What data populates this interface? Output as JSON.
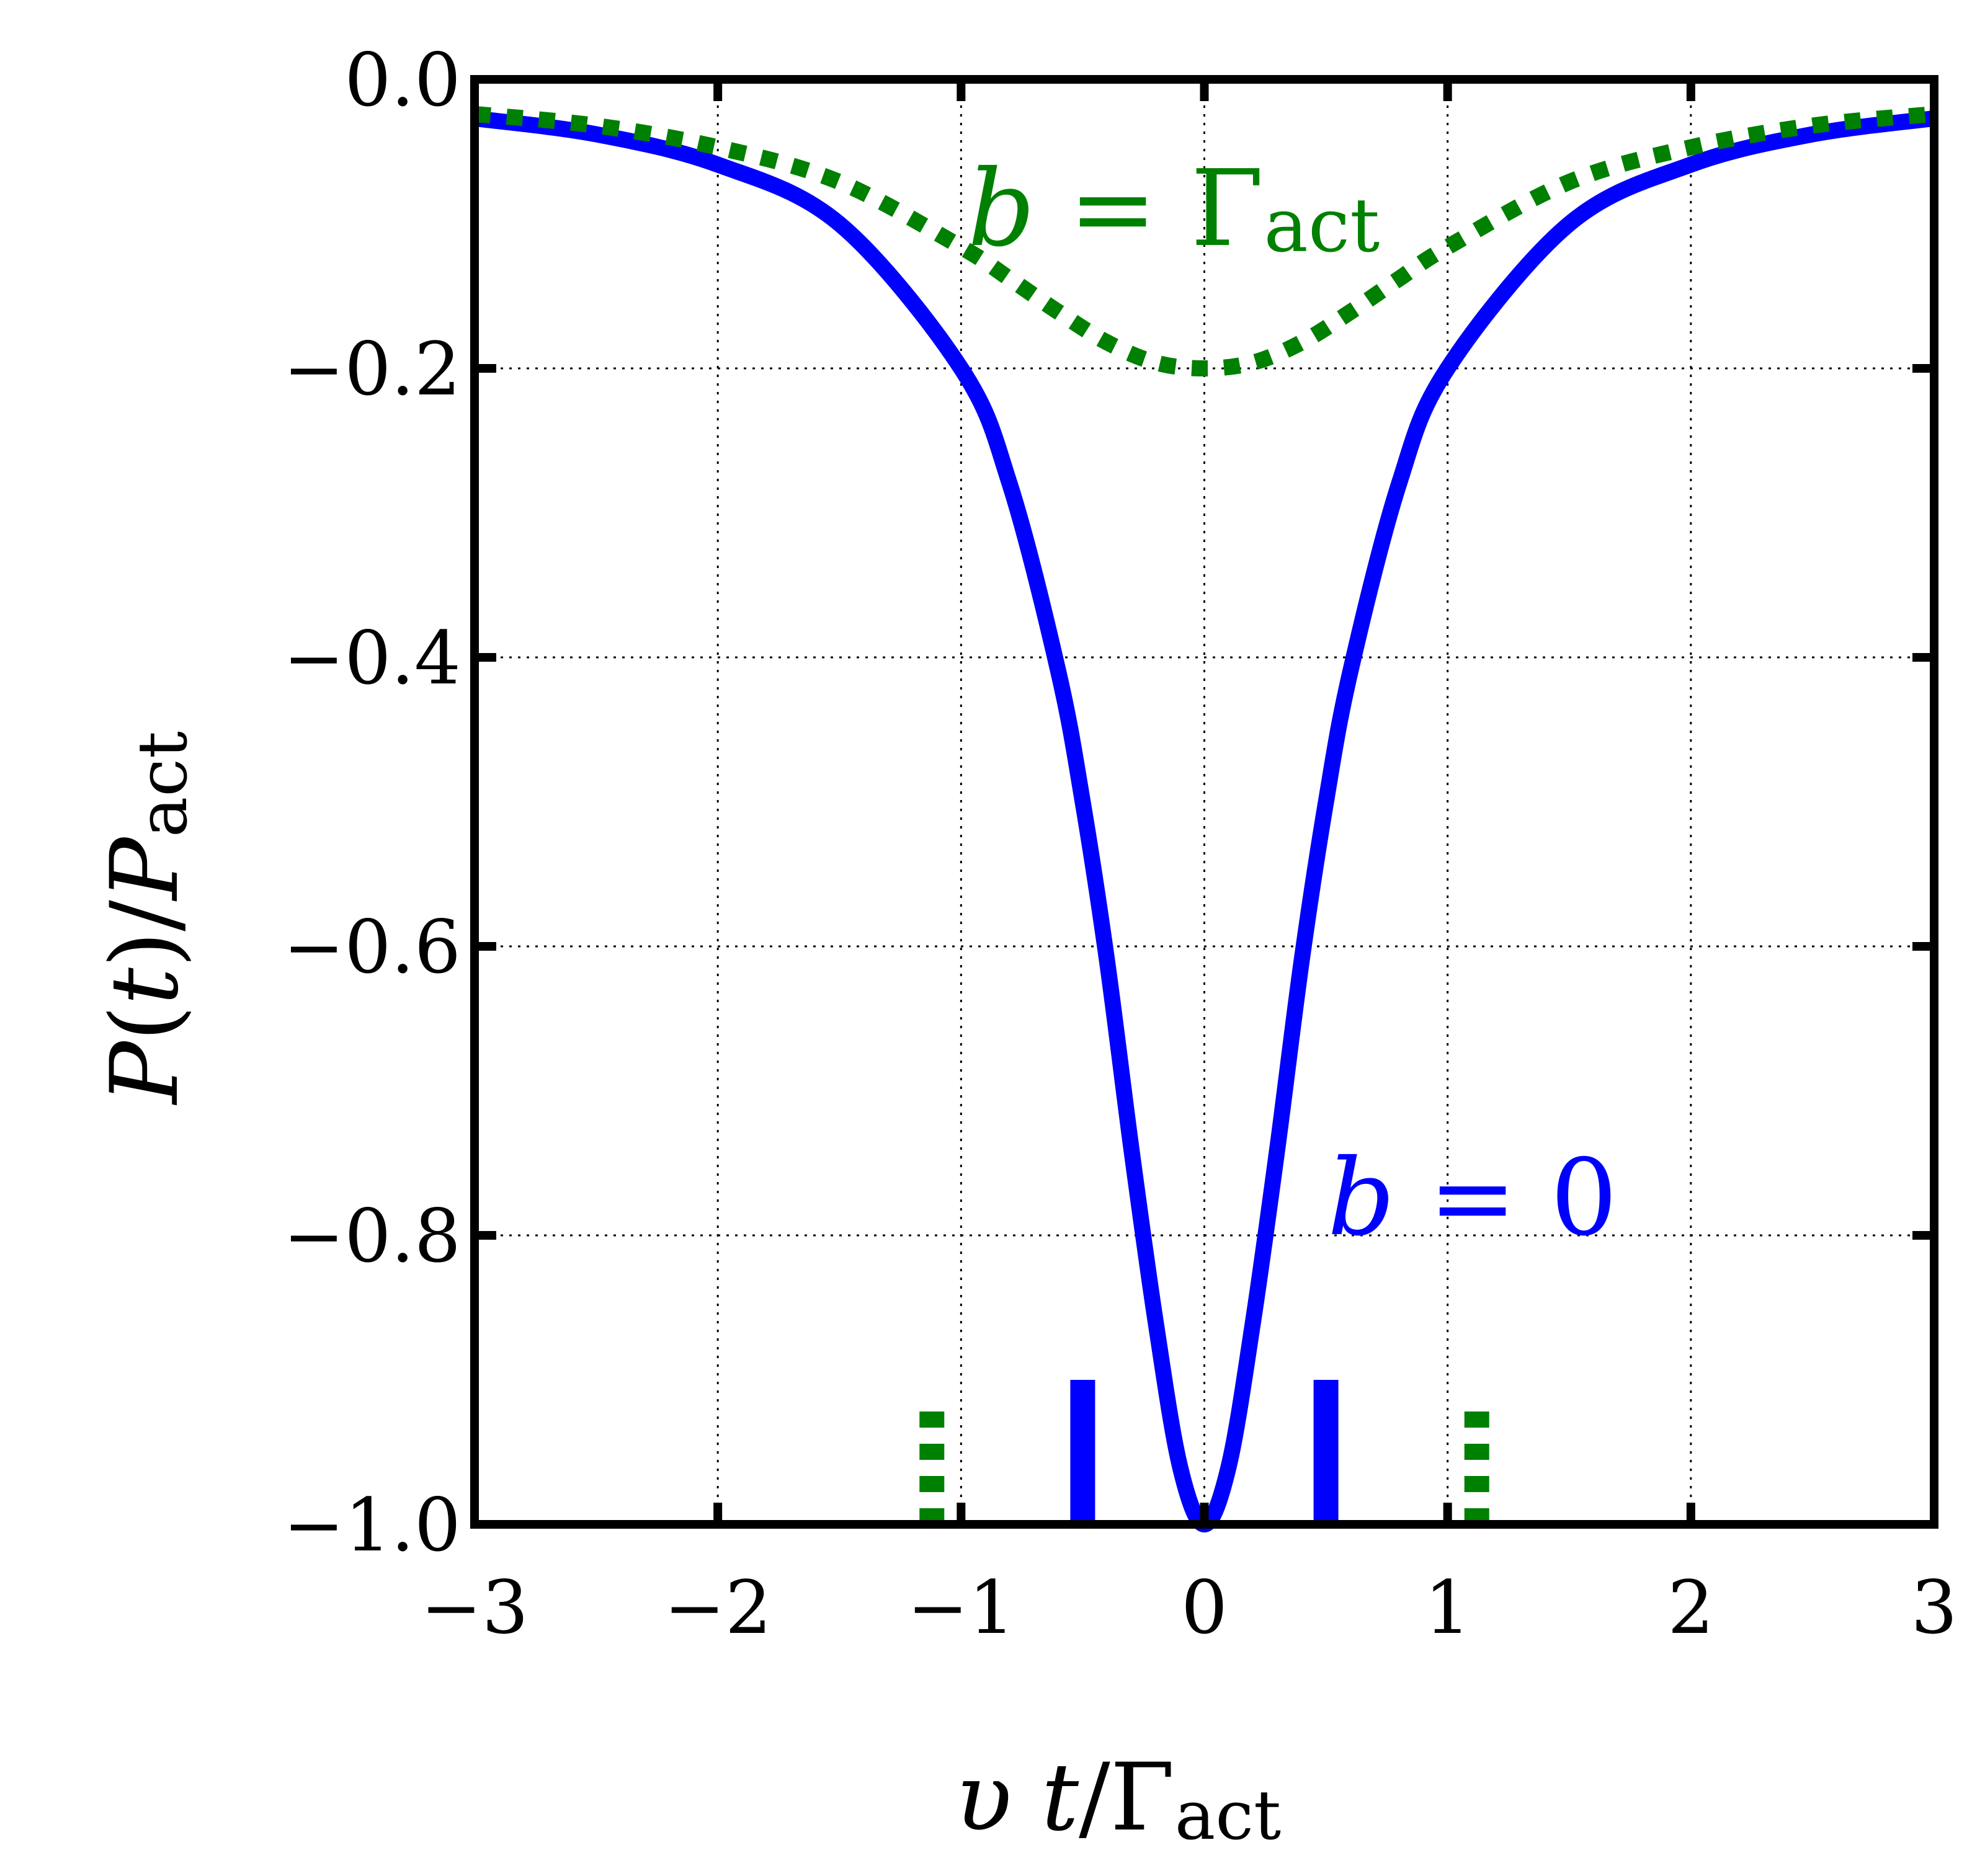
{
  "chart_data": {
    "type": "line",
    "xlabel": "υ t/Γact",
    "ylabel": "P(t)/Pact",
    "xlim": [
      -3,
      3
    ],
    "ylim": [
      -1.0,
      0.0
    ],
    "grid": true,
    "xticks": [
      -3,
      -2,
      -1,
      0,
      1,
      2,
      3
    ],
    "xtick_labels": [
      "−3",
      "−2",
      "−1",
      "0",
      "1",
      "2",
      "3"
    ],
    "yticks": [
      0.0,
      -0.2,
      -0.4,
      -0.6,
      -0.8,
      -1.0
    ],
    "ytick_labels": [
      "0.0",
      "−0.2",
      "−0.4",
      "−0.6",
      "−0.8",
      "−1.0"
    ],
    "series": [
      {
        "name": "b = 0",
        "color": "#0000ff",
        "style": "solid",
        "x": [
          -3.0,
          -2.5,
          -2.0,
          -1.5,
          -1.0,
          -0.8,
          -0.6,
          -0.5,
          -0.4,
          -0.3,
          -0.2,
          -0.1,
          0.0,
          0.1,
          0.2,
          0.3,
          0.4,
          0.5,
          0.6,
          0.8,
          1.0,
          1.5,
          2.0,
          2.5,
          3.0
        ],
        "y": [
          -0.027,
          -0.038,
          -0.059,
          -0.1,
          -0.2,
          -0.28,
          -0.41,
          -0.5,
          -0.61,
          -0.74,
          -0.86,
          -0.96,
          -1.0,
          -0.96,
          -0.86,
          -0.74,
          -0.61,
          -0.5,
          -0.41,
          -0.28,
          -0.2,
          -0.1,
          -0.059,
          -0.038,
          -0.027
        ]
      },
      {
        "name": "b = Γact",
        "color": "#008000",
        "style": "dotted",
        "x": [
          -3.0,
          -2.5,
          -2.0,
          -1.5,
          -1.0,
          -0.8,
          -0.6,
          -0.4,
          -0.2,
          0.0,
          0.2,
          0.4,
          0.6,
          0.8,
          1.0,
          1.5,
          2.0,
          2.5,
          3.0
        ],
        "y": [
          -0.024,
          -0.032,
          -0.047,
          -0.071,
          -0.116,
          -0.138,
          -0.161,
          -0.182,
          -0.196,
          -0.2,
          -0.196,
          -0.182,
          -0.161,
          -0.138,
          -0.116,
          -0.071,
          -0.047,
          -0.032,
          -0.024
        ]
      }
    ],
    "markers": [
      {
        "x": -0.5,
        "y_top": -0.9,
        "color": "#0000ff",
        "style": "solid"
      },
      {
        "x": 0.5,
        "y_top": -0.9,
        "color": "#0000ff",
        "style": "solid"
      },
      {
        "x": -1.12,
        "y_top": -0.92,
        "color": "#008000",
        "style": "dotted"
      },
      {
        "x": 1.12,
        "y_top": -0.92,
        "color": "#008000",
        "style": "dotted"
      }
    ],
    "annotations": [
      {
        "text": "b = Γact",
        "color": "#008000",
        "x": -1.0,
        "y": -0.12
      },
      {
        "text": "b = 0",
        "color": "#0000ff",
        "x": 0.5,
        "y": -0.8
      }
    ]
  }
}
